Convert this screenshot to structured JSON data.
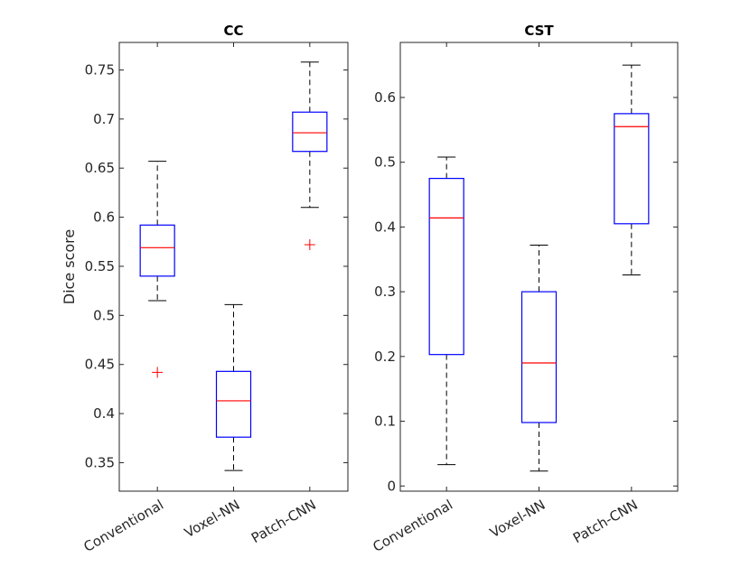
{
  "chart_data": [
    {
      "type": "box",
      "title": "CC",
      "ylabel": "Dice score",
      "xlabel": "",
      "categories": [
        "Conventional",
        "Voxel-NN",
        "Patch-CNN"
      ],
      "ylim": [
        0.321,
        0.778
      ],
      "yticks": [
        0.35,
        0.4,
        0.45,
        0.5,
        0.55,
        0.6,
        0.65,
        0.7,
        0.75
      ],
      "ytick_labels": [
        "0.35",
        "0.4",
        "0.45",
        "0.5",
        "0.55",
        "0.6",
        "0.65",
        "0.7",
        "0.75"
      ],
      "boxes": [
        {
          "whisker_low": 0.515,
          "q1": 0.54,
          "median": 0.569,
          "q3": 0.592,
          "whisker_high": 0.657,
          "outliers": [
            0.442
          ]
        },
        {
          "whisker_low": 0.342,
          "q1": 0.376,
          "median": 0.413,
          "q3": 0.443,
          "whisker_high": 0.511,
          "outliers": []
        },
        {
          "whisker_low": 0.61,
          "q1": 0.667,
          "median": 0.686,
          "q3": 0.707,
          "whisker_high": 0.758,
          "outliers": [
            0.572
          ]
        }
      ],
      "grid": false
    },
    {
      "type": "box",
      "title": "CST",
      "ylabel": "",
      "xlabel": "",
      "categories": [
        "Conventional",
        "Voxel-NN",
        "Patch-CNN"
      ],
      "ylim": [
        -0.008,
        0.685
      ],
      "yticks": [
        0,
        0.1,
        0.2,
        0.3,
        0.4,
        0.5,
        0.6
      ],
      "ytick_labels": [
        "0",
        "0.1",
        "0.2",
        "0.3",
        "0.4",
        "0.5",
        "0.6"
      ],
      "boxes": [
        {
          "whisker_low": 0.033,
          "q1": 0.203,
          "median": 0.414,
          "q3": 0.475,
          "whisker_high": 0.508,
          "outliers": []
        },
        {
          "whisker_low": 0.023,
          "q1": 0.098,
          "median": 0.19,
          "q3": 0.3,
          "whisker_high": 0.372,
          "outliers": []
        },
        {
          "whisker_low": 0.326,
          "q1": 0.405,
          "median": 0.555,
          "q3": 0.575,
          "whisker_high": 0.65,
          "outliers": []
        }
      ],
      "grid": false
    }
  ],
  "colors": {
    "box": "#0000ff",
    "median": "#ff0000",
    "whisker": "#000000",
    "outlier": "#ff0000",
    "axis": "#262626"
  }
}
